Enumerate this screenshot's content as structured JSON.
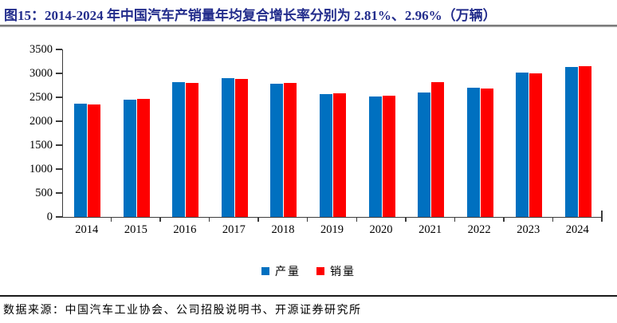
{
  "title": "图15：2014-2024 年中国汽车产销量年均复合增长率分别为 2.81%、2.96%（万辆）",
  "source_note": "数据来源：中国汽车工业协会、公司招股说明书、开源证券研究所",
  "colors": {
    "title": "#232D8C",
    "production_bar": "#0070C0",
    "sales_bar": "#FE0000",
    "axis": "#3b3b3b"
  },
  "legend": {
    "items": [
      {
        "id": "production",
        "label": "产量",
        "color": "#0070C0"
      },
      {
        "id": "sales",
        "label": "销量",
        "color": "#FE0000"
      }
    ]
  },
  "chart_data": {
    "type": "bar",
    "title": "2014-2024 年中国汽车产销量年均复合增长率分别为 2.81%、2.96%（万辆）",
    "categories": [
      "2014",
      "2015",
      "2016",
      "2017",
      "2018",
      "2019",
      "2020",
      "2021",
      "2022",
      "2023",
      "2024"
    ],
    "series": [
      {
        "id": "production",
        "name": "产量",
        "color": "#0070C0",
        "values": [
          2372,
          2450,
          2812,
          2902,
          2781,
          2572,
          2523,
          2608,
          2702,
          3016,
          3128
        ]
      },
      {
        "id": "sales",
        "name": "销量",
        "color": "#FE0000",
        "values": [
          2349,
          2460,
          2803,
          2888,
          2808,
          2577,
          2531,
          2825,
          2686,
          3009,
          3144
        ]
      }
    ],
    "xlabel": "",
    "ylabel": "",
    "unit": "万辆",
    "ylim": [
      0,
      3500
    ],
    "yticks": [
      0,
      500,
      1000,
      1500,
      2000,
      2500,
      3000,
      3500
    ],
    "grid": false,
    "legend_position": "bottom",
    "cagr_production": "2.81%",
    "cagr_sales": "2.96%"
  }
}
